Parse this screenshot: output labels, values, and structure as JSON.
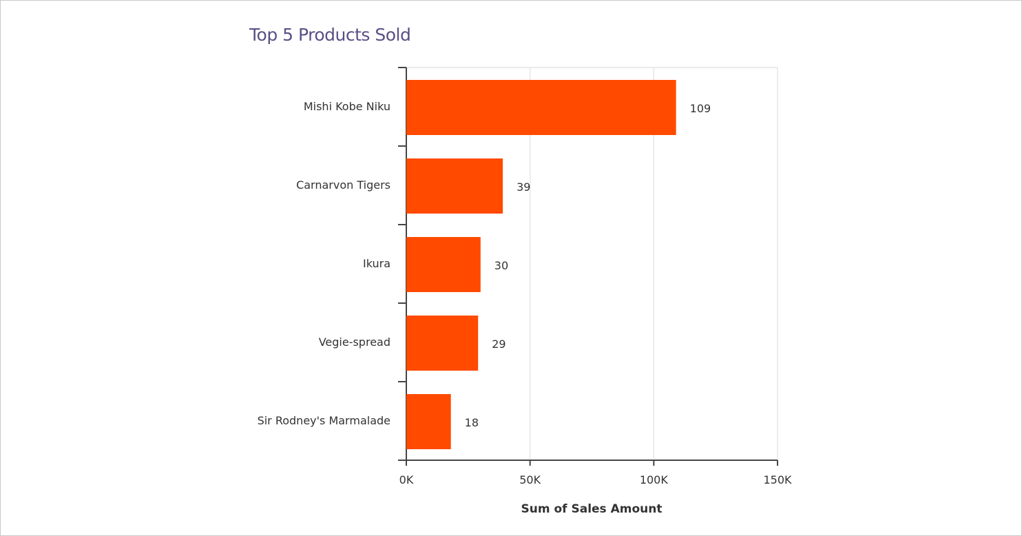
{
  "chart_data": {
    "type": "bar",
    "orientation": "horizontal",
    "title": "Top 5 Products Sold",
    "xlabel": "Sum of Sales Amount",
    "ylabel": "",
    "categories": [
      "Mishi Kobe Niku",
      "Carnarvon Tigers",
      "Ikura",
      "Vegie-spread",
      "Sir Rodney's Marmalade"
    ],
    "values": [
      109,
      39,
      30,
      29,
      18
    ],
    "data_labels": [
      "109",
      "39",
      "30",
      "29",
      "18"
    ],
    "value_unit": "K",
    "xlim": [
      0,
      150
    ],
    "xticks": [
      0,
      50,
      100,
      150
    ],
    "xtick_labels": [
      "0K",
      "50K",
      "100K",
      "150K"
    ],
    "grid": "vertical",
    "legend": "none",
    "bar_color": "#ff4a00",
    "title_color": "#5a4f85"
  }
}
